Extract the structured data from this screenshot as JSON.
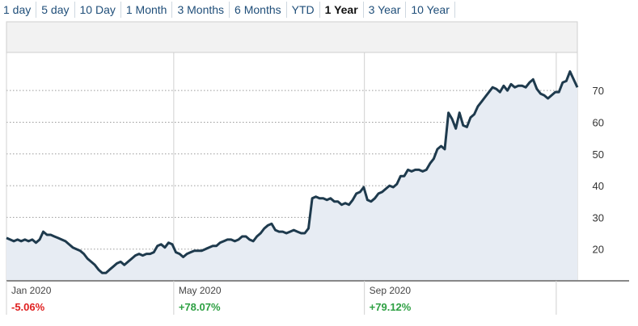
{
  "tabs": [
    {
      "label": "1 day"
    },
    {
      "label": "5 day"
    },
    {
      "label": "10 Day"
    },
    {
      "label": "1 Month"
    },
    {
      "label": "3 Months"
    },
    {
      "label": "6 Months"
    },
    {
      "label": "YTD"
    },
    {
      "label": "1 Year",
      "active": true
    },
    {
      "label": "3 Year"
    },
    {
      "label": "10 Year"
    }
  ],
  "colors": {
    "line": "#1e3a4d",
    "area": "#e7ecf3",
    "positive": "#2ea043",
    "negative": "#e02020",
    "tab_link": "#1f4e79"
  },
  "chart_data": {
    "type": "area",
    "title": "",
    "xlabel": "",
    "ylabel": "",
    "ylim": [
      10,
      82
    ],
    "y_ticks": [
      20,
      30,
      40,
      50,
      60,
      70
    ],
    "grid": true,
    "x_tick_labels": [
      {
        "label": "Jan 2020",
        "change": "-5.06%",
        "sign": "negative"
      },
      {
        "label": "May 2020",
        "change": "+78.07%",
        "sign": "positive"
      },
      {
        "label": "Sep 2020",
        "change": "+79.12%",
        "sign": "positive"
      }
    ],
    "series": [
      {
        "values": [
          23.5,
          23,
          22.5,
          23,
          22.5,
          23,
          22.5,
          23,
          22,
          23,
          25.5,
          24.5,
          24.5,
          24,
          23.5,
          23,
          22.5,
          21.5,
          20.5,
          20,
          19.5,
          18.5,
          17,
          16,
          15,
          13.5,
          12.5,
          12.5,
          13.5,
          14.5,
          15.5,
          16,
          15,
          16,
          17,
          18,
          18.5,
          18,
          18.5,
          18.5,
          19,
          21,
          21.5,
          20.5,
          22,
          21.5,
          19,
          18.5,
          17.5,
          18.5,
          19,
          19.5,
          19.5,
          19.5,
          20,
          20.5,
          21,
          21,
          22,
          22.5,
          23,
          23,
          22.5,
          23,
          24,
          24,
          23,
          22.5,
          24,
          25,
          26.5,
          27.5,
          28,
          26,
          25.5,
          25.5,
          25,
          25.5,
          26,
          25.5,
          25,
          25,
          26.5,
          36,
          36.5,
          36,
          36,
          35.5,
          36,
          35,
          35,
          34,
          34.5,
          34,
          35.5,
          37.5,
          38,
          39.5,
          35.5,
          35,
          36,
          37.5,
          38,
          39,
          40,
          39.5,
          40.5,
          43,
          43,
          45,
          44.5,
          45,
          45,
          44.5,
          45,
          47,
          48.5,
          51.5,
          52.5,
          51.5,
          63,
          61,
          58,
          63,
          59,
          58.5,
          61.5,
          62.5,
          65,
          66.5,
          68,
          69.5,
          71,
          70.5,
          69.5,
          71.5,
          70,
          72,
          71,
          71.5,
          71.5,
          71,
          72.5,
          73.5,
          70.5,
          69,
          68.5,
          67.5,
          68.5,
          69.5,
          69.5,
          72.5,
          73,
          76,
          73.5,
          71
        ]
      }
    ]
  }
}
